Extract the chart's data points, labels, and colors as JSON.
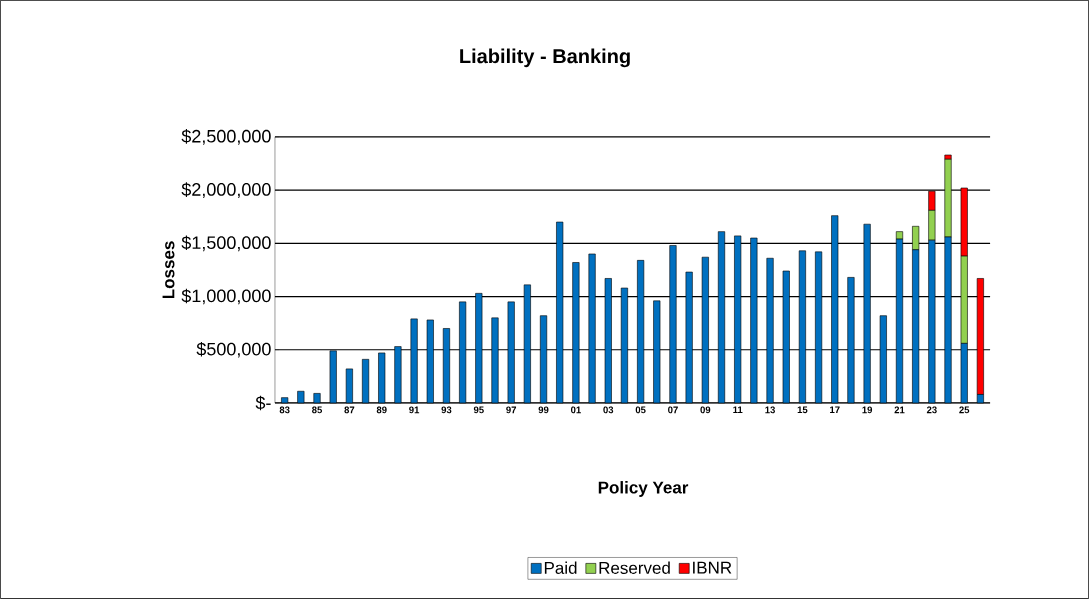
{
  "chart_data": {
    "type": "bar",
    "title": "Liability - Banking",
    "xlabel": "Policy Year",
    "ylabel": "Losses",
    "categories": [
      "83",
      null,
      "85",
      null,
      "87",
      null,
      "89",
      null,
      "91",
      null,
      "93",
      null,
      "95",
      null,
      "97",
      null,
      "99",
      null,
      "01",
      null,
      "03",
      null,
      "05",
      null,
      "07",
      null,
      "09",
      null,
      "11",
      null,
      "13",
      null,
      "15",
      null,
      "17",
      null,
      "19",
      null,
      "21",
      null,
      "23",
      null,
      "25",
      null
    ],
    "series": [
      {
        "name": "Paid",
        "color": "#0070c0",
        "values": [
          50000,
          110000,
          90000,
          490000,
          320000,
          410000,
          470000,
          530000,
          790000,
          780000,
          700000,
          950000,
          1030000,
          800000,
          950000,
          1110000,
          820000,
          1700000,
          1320000,
          1400000,
          1170000,
          1080000,
          1340000,
          960000,
          1480000,
          1230000,
          1370000,
          1610000,
          1570000,
          1550000,
          1360000,
          1240000,
          1430000,
          1420000,
          1760000,
          1180000,
          1680000,
          820000,
          1540000,
          1440000,
          1530000,
          1560000,
          560000,
          80000
        ]
      },
      {
        "name": "Reserved",
        "color": "#92d050",
        "values": [
          null,
          null,
          null,
          null,
          null,
          null,
          null,
          null,
          null,
          null,
          null,
          null,
          null,
          null,
          null,
          null,
          null,
          null,
          null,
          null,
          null,
          null,
          null,
          null,
          null,
          null,
          null,
          null,
          null,
          null,
          null,
          null,
          null,
          null,
          null,
          null,
          null,
          null,
          70000,
          220000,
          280000,
          730000,
          820000,
          null
        ]
      },
      {
        "name": "IBNR",
        "color": "#ff0000",
        "values": [
          null,
          null,
          null,
          null,
          null,
          null,
          null,
          null,
          null,
          null,
          null,
          null,
          null,
          null,
          null,
          null,
          null,
          null,
          null,
          null,
          null,
          null,
          null,
          null,
          null,
          null,
          null,
          null,
          null,
          null,
          null,
          null,
          null,
          null,
          null,
          null,
          null,
          null,
          null,
          null,
          180000,
          40000,
          640000,
          1090000
        ]
      }
    ],
    "stacked": true,
    "ylim": [
      0,
      2500000
    ],
    "yticks": [
      {
        "value": 0,
        "label": "$-"
      },
      {
        "value": 500000,
        "label": "$500,000"
      },
      {
        "value": 1000000,
        "label": "$1,000,000"
      },
      {
        "value": 1500000,
        "label": "$1,500,000"
      },
      {
        "value": 2000000,
        "label": "$2,000,000"
      },
      {
        "value": 2500000,
        "label": "$2,500,000"
      }
    ],
    "grid": "y",
    "legend": "bottom"
  }
}
